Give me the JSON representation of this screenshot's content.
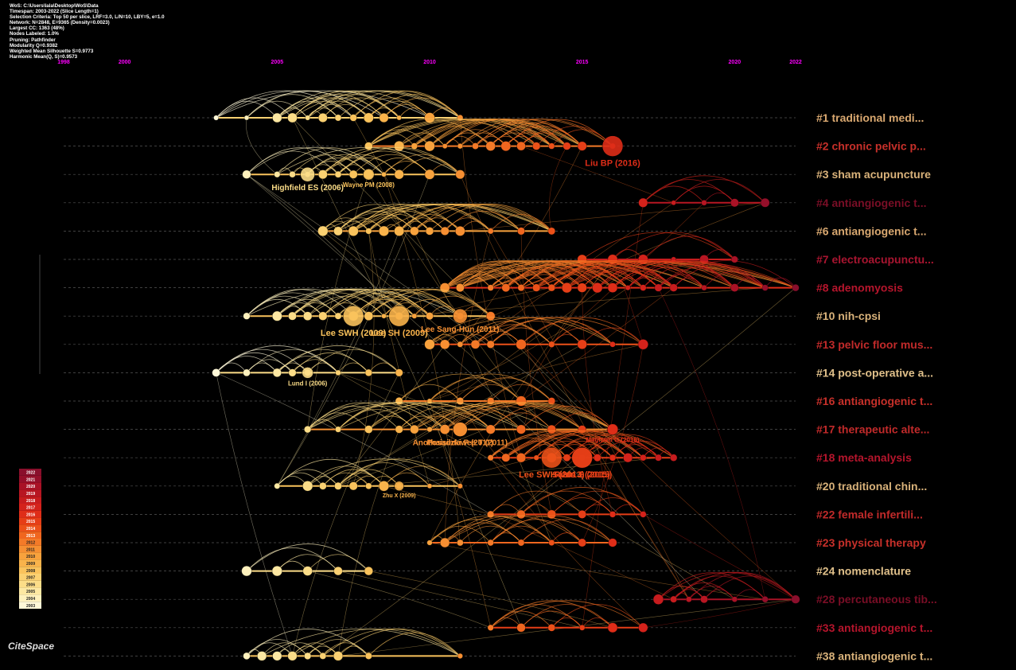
{
  "info_lines": [
    "WoS: C:\\Users\\lala\\Desktop\\WoS\\Data",
    "Timespan: 2003-2022 (Slice Length=1)",
    "Selection Criteria: Top 50 per slice, LRF=3.0, L/N=10, LBY=5, e=1.0",
    "Network: N=2848, E=9365 (Density=0.0023)",
    "Largest CC: 1363 (48%)",
    "Nodes Labeled: 1.0%",
    "Pruning: Pathfinder",
    "Modularity Q=0.9382",
    "Weighted Mean Silhouette S=0.9773",
    "Harmonic Mean(Q, S)=0.9573"
  ],
  "logo": "CiteSpace",
  "colors": {
    "background": "#000000",
    "year_labels": "#ff00ff"
  },
  "chart_data": {
    "type": "timeline",
    "x_range": [
      1998,
      2022
    ],
    "year_ticks": [
      1998,
      2000,
      2005,
      2010,
      2015,
      2020,
      2022
    ],
    "legend_years": [
      "2022",
      "2021",
      "2020",
      "2019",
      "2018",
      "2017",
      "2016",
      "2015",
      "2014",
      "2013",
      "2012",
      "2011",
      "2010",
      "2009",
      "2008",
      "2007",
      "2006",
      "2005",
      "2004",
      "2003"
    ],
    "legend_colors": [
      "#8a0f2c",
      "#950f2a",
      "#a91226",
      "#b81622",
      "#c71c1e",
      "#d4221b",
      "#df2d18",
      "#e63e17",
      "#ec5119",
      "#f0661f",
      "#f47a28",
      "#f68f32",
      "#f8a23d",
      "#f9b34b",
      "#fac35c",
      "#fbd172",
      "#fcdd88",
      "#fde8a2",
      "#fef1bd",
      "#fff8d8"
    ],
    "clusters": [
      {
        "label": "#1 traditional medi...",
        "color": "#d9a870",
        "years": [
          2003,
          2004,
          2005,
          2005.5,
          2006,
          2006.5,
          2007,
          2007.5,
          2008,
          2008.5,
          2009,
          2010,
          2011
        ]
      },
      {
        "label": "#2 chronic pelvic p...",
        "color": "#c7302a",
        "years": [
          2008,
          2009,
          2009.5,
          2010,
          2010.5,
          2011,
          2011.5,
          2012,
          2012.5,
          2013,
          2013.5,
          2014,
          2014.5,
          2015,
          2016
        ]
      },
      {
        "label": "#3 sham acupuncture",
        "color": "#d9b27a",
        "years": [
          2004,
          2005,
          2005.5,
          2006,
          2006.5,
          2007,
          2007.5,
          2008,
          2008.5,
          2009,
          2010,
          2011
        ]
      },
      {
        "label": "#4 antiangiogenic t...",
        "color": "#7a0e26",
        "years": [
          2017,
          2018,
          2019,
          2020,
          2021
        ]
      },
      {
        "label": "#6 antiangiogenic t...",
        "color": "#d9a870",
        "years": [
          2006.5,
          2007,
          2007.5,
          2008,
          2008.5,
          2009,
          2009.5,
          2010,
          2010.5,
          2011,
          2012,
          2013,
          2014
        ]
      },
      {
        "label": "#7 electroacupunctu...",
        "color": "#a81530",
        "years": [
          2015,
          2016,
          2017,
          2018,
          2019,
          2020
        ]
      },
      {
        "label": "#8 adenomyosis",
        "color": "#b5152c",
        "years": [
          2010.5,
          2011,
          2012,
          2012.5,
          2013,
          2013.5,
          2014,
          2014.5,
          2015,
          2015.5,
          2016,
          2016.5,
          2017,
          2017.5,
          2018,
          2019,
          2020,
          2021,
          2022
        ]
      },
      {
        "label": "#10 nih-cpsi",
        "color": "#d9b27a",
        "years": [
          2004,
          2005,
          2005.5,
          2006,
          2006.5,
          2007,
          2007.5,
          2008,
          2008.5,
          2009,
          2009.5,
          2010,
          2011,
          2012
        ]
      },
      {
        "label": "#13 pelvic floor mus...",
        "color": "#c12a2a",
        "years": [
          2010,
          2010.5,
          2011,
          2011.5,
          2012,
          2013,
          2014,
          2015,
          2016,
          2017
        ]
      },
      {
        "label": "#14 post-operative a...",
        "color": "#e0c08a",
        "years": [
          2003,
          2004,
          2005,
          2005.5,
          2006,
          2007,
          2008,
          2009
        ]
      },
      {
        "label": "#16 antiangiogenic t...",
        "color": "#c7302a",
        "years": [
          2009,
          2010,
          2011,
          2012,
          2013,
          2014
        ]
      },
      {
        "label": "#17 therapeutic alte...",
        "color": "#c12a2a",
        "years": [
          2006,
          2007,
          2008,
          2009,
          2009.5,
          2010,
          2010.5,
          2011,
          2012,
          2013,
          2014,
          2015,
          2016
        ]
      },
      {
        "label": "#18 meta-analysis",
        "color": "#b5152c",
        "years": [
          2012,
          2012.5,
          2013,
          2013.5,
          2014,
          2014.5,
          2015,
          2015.5,
          2016,
          2016.5,
          2017,
          2017.5,
          2018
        ]
      },
      {
        "label": "#20 traditional chin...",
        "color": "#d9b27a",
        "years": [
          2005,
          2006,
          2006.5,
          2007,
          2007.5,
          2008,
          2008.5,
          2009,
          2010,
          2011
        ]
      },
      {
        "label": "#22 female infertili...",
        "color": "#c12a2a",
        "years": [
          2012,
          2013,
          2014,
          2015,
          2016,
          2017
        ]
      },
      {
        "label": "#23 physical therapy",
        "color": "#c7302a",
        "years": [
          2010,
          2010.5,
          2011,
          2012,
          2013,
          2014,
          2015,
          2016
        ]
      },
      {
        "label": "#24 nomenclature",
        "color": "#e0c08a",
        "years": [
          2004,
          2005,
          2006,
          2007,
          2008
        ]
      },
      {
        "label": "#28 percutaneous tib...",
        "color": "#7a0e26",
        "years": [
          2017.5,
          2018,
          2018.5,
          2019,
          2020,
          2021,
          2022
        ]
      },
      {
        "label": "#33 antiangiogenic t...",
        "color": "#b5152c",
        "years": [
          2012,
          2013,
          2014,
          2015,
          2016,
          2017
        ]
      },
      {
        "label": "#38 antiangiogenic t...",
        "color": "#d9b27a",
        "years": [
          2004,
          2004.5,
          2005,
          2005.5,
          2006,
          2006.5,
          2007,
          2008,
          2011
        ]
      }
    ],
    "node_labels": [
      {
        "text": "Liu BP (2016)",
        "cluster": 1,
        "year": 2016,
        "size": "large"
      },
      {
        "text": "Highfield ES (2006)",
        "cluster": 2,
        "year": 2006,
        "size": "medium"
      },
      {
        "text": "Wayne PM (2008)",
        "cluster": 2,
        "year": 2008,
        "size": "small"
      },
      {
        "text": "Lee SWH (2009)",
        "cluster": 7,
        "year": 2007.5,
        "size": "large"
      },
      {
        "text": "Lee SH (2009)",
        "cluster": 7,
        "year": 2009,
        "size": "large"
      },
      {
        "text": "Lee Sang-Hun (2011)",
        "cluster": 7,
        "year": 2011,
        "size": "medium"
      },
      {
        "text": "Lund I (2006)",
        "cluster": 9,
        "year": 2006,
        "size": "small"
      },
      {
        "text": "Posadzki P (2011)",
        "cluster": 11,
        "year": 2011,
        "size": "medium"
      },
      {
        "text": "Anothaisintawee T (2011)",
        "cluster": 11,
        "year": 2011,
        "size": "medium"
      },
      {
        "text": "Magistro G (2016)",
        "cluster": 11,
        "year": 2016,
        "size": "small"
      },
      {
        "text": "Rees J (2015)",
        "cluster": 12,
        "year": 2015,
        "size": "large"
      },
      {
        "text": "Lee SWH (2013)",
        "cluster": 12,
        "year": 2014,
        "size": "large"
      },
      {
        "text": "Sahin S (2015)",
        "cluster": 12,
        "year": 2015,
        "size": "large"
      },
      {
        "text": "Zhu X (2009)",
        "cluster": 13,
        "year": 2009,
        "size": "tiny"
      }
    ]
  }
}
